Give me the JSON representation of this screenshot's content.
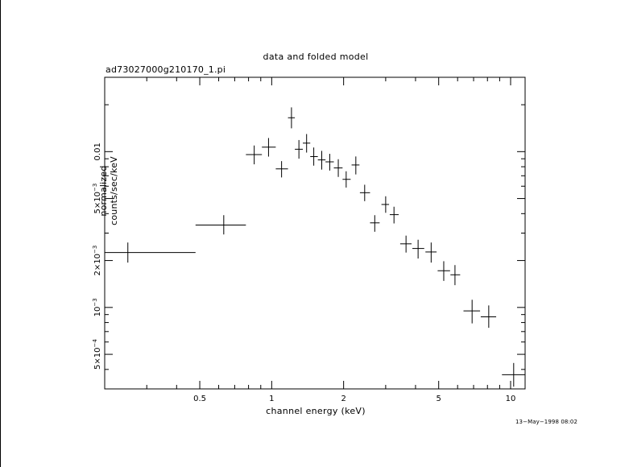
{
  "chart_data": {
    "type": "scatter",
    "title": "data and folded model",
    "subtitle": "ad73027000g210170_1.pi",
    "xlabel": "channel energy (keV)",
    "ylabel": "normalized counts/sec/keV",
    "x_scale": "log",
    "y_scale": "log",
    "xlim": [
      0.2,
      11.5
    ],
    "ylim": [
      0.0003,
      0.03
    ],
    "x_tick_values": [
      0.5,
      1,
      2,
      5,
      10
    ],
    "x_tick_labels": [
      "0.5",
      "1",
      "2",
      "5",
      "10"
    ],
    "y_tick_values": [
      0.0005,
      0.001,
      0.002,
      0.005,
      0.01
    ],
    "y_tick_labels": [
      {
        "base": "5×10",
        "exp": "−4"
      },
      {
        "base": "10",
        "exp": "−3"
      },
      {
        "base": "2×10",
        "exp": "−3"
      },
      {
        "base": "5×10",
        "exp": "−3"
      },
      {
        "base": "0.01",
        "exp": ""
      }
    ],
    "grid": false,
    "points": [
      {
        "x": 0.25,
        "xerr": [
          0.2,
          0.48
        ],
        "y": 0.00225,
        "yerr": [
          0.00194,
          0.00261
        ]
      },
      {
        "x": 0.63,
        "xerr": [
          0.48,
          0.78
        ],
        "y": 0.00338,
        "yerr": [
          0.00294,
          0.00391
        ]
      },
      {
        "x": 0.845,
        "xerr": [
          0.78,
          0.91
        ],
        "y": 0.00957,
        "yerr": [
          0.00829,
          0.01095
        ]
      },
      {
        "x": 0.97,
        "xerr": [
          0.91,
          1.04
        ],
        "y": 0.01068,
        "yerr": [
          0.00929,
          0.01223
        ]
      },
      {
        "x": 1.1,
        "xerr": [
          1.04,
          1.17
        ],
        "y": 0.00775,
        "yerr": [
          0.00683,
          0.00869
        ]
      },
      {
        "x": 1.21,
        "xerr": [
          1.17,
          1.25
        ],
        "y": 0.0165,
        "yerr": [
          0.01411,
          0.01923
        ]
      },
      {
        "x": 1.3,
        "xerr": [
          1.25,
          1.35
        ],
        "y": 0.01036,
        "yerr": [
          0.00902,
          0.01187
        ]
      },
      {
        "x": 1.4,
        "xerr": [
          1.35,
          1.45
        ],
        "y": 0.01134,
        "yerr": [
          0.00986,
          0.01297
        ]
      },
      {
        "x": 1.5,
        "xerr": [
          1.45,
          1.56
        ],
        "y": 0.00929,
        "yerr": [
          0.00813,
          0.01063
        ]
      },
      {
        "x": 1.62,
        "xerr": [
          1.56,
          1.68
        ],
        "y": 0.00885,
        "yerr": [
          0.00767,
          0.01011
        ]
      },
      {
        "x": 1.75,
        "xerr": [
          1.68,
          1.82
        ],
        "y": 0.0086,
        "yerr": [
          0.00756,
          0.00968
        ]
      },
      {
        "x": 1.9,
        "xerr": [
          1.82,
          1.98
        ],
        "y": 0.00786,
        "yerr": [
          0.00688,
          0.00894
        ]
      },
      {
        "x": 2.05,
        "xerr": [
          1.98,
          2.14
        ],
        "y": 0.00664,
        "yerr": [
          0.00588,
          0.00748
        ]
      },
      {
        "x": 2.25,
        "xerr": [
          2.16,
          2.33
        ],
        "y": 0.00821,
        "yerr": [
          0.00714,
          0.00931
        ]
      },
      {
        "x": 2.45,
        "xerr": [
          2.34,
          2.58
        ],
        "y": 0.00545,
        "yerr": [
          0.00481,
          0.00613
        ]
      },
      {
        "x": 2.7,
        "xerr": [
          2.58,
          2.83
        ],
        "y": 0.00349,
        "yerr": [
          0.00306,
          0.00391
        ]
      },
      {
        "x": 3.0,
        "xerr": [
          2.88,
          3.1
        ],
        "y": 0.00458,
        "yerr": [
          0.00405,
          0.00517
        ]
      },
      {
        "x": 3.25,
        "xerr": [
          3.12,
          3.4
        ],
        "y": 0.00394,
        "yerr": [
          0.00346,
          0.00443
        ]
      },
      {
        "x": 3.65,
        "xerr": [
          3.45,
          3.85
        ],
        "y": 0.00256,
        "yerr": [
          0.00225,
          0.00289
        ]
      },
      {
        "x": 4.1,
        "xerr": [
          3.88,
          4.35
        ],
        "y": 0.00239,
        "yerr": [
          0.00206,
          0.00272
        ]
      },
      {
        "x": 4.65,
        "xerr": [
          4.4,
          4.9
        ],
        "y": 0.00227,
        "yerr": [
          0.00194,
          0.00261
        ]
      },
      {
        "x": 5.25,
        "xerr": [
          4.95,
          5.58
        ],
        "y": 0.00172,
        "yerr": [
          0.00148,
          0.00198
        ]
      },
      {
        "x": 5.85,
        "xerr": [
          5.6,
          6.15
        ],
        "y": 0.00162,
        "yerr": [
          0.00139,
          0.00187
        ]
      },
      {
        "x": 6.9,
        "xerr": [
          6.35,
          7.45
        ],
        "y": 0.00095,
        "yerr": [
          0.00079,
          0.00112
        ]
      },
      {
        "x": 8.1,
        "xerr": [
          7.5,
          8.7
        ],
        "y": 0.00087,
        "yerr": [
          0.00074,
          0.00103
        ]
      },
      {
        "x": 10.3,
        "xerr": [
          9.2,
          11.5
        ],
        "y": 0.00037,
        "yerr": [
          0.00031,
          0.00044
        ]
      }
    ]
  },
  "footer": {
    "timestamp": "13−May−1998 08:02"
  }
}
